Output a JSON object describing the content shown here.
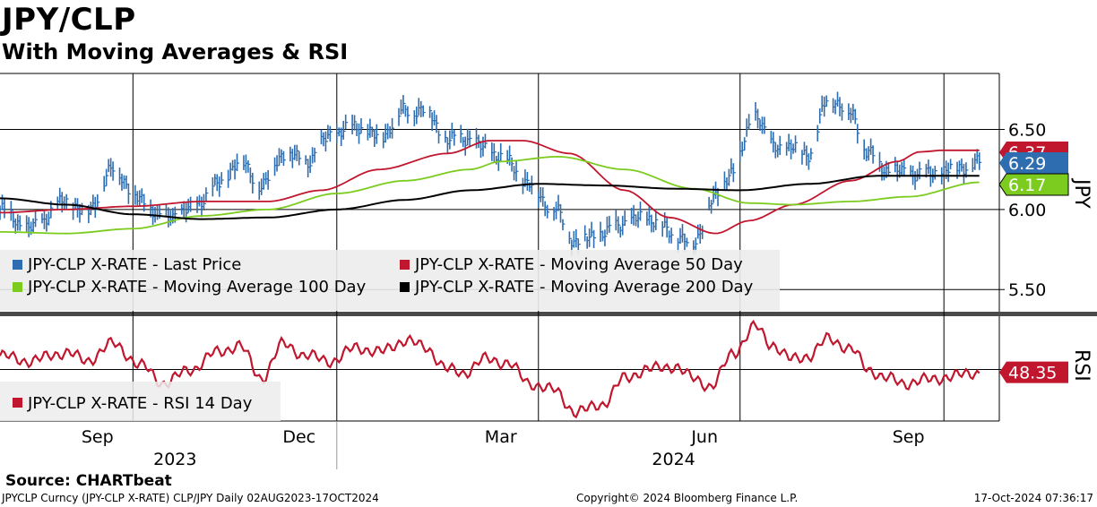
{
  "header": {
    "title": "JPY/CLP",
    "subtitle": "With Moving Averages & RSI"
  },
  "footer": {
    "source": "Source: CHARTbeat",
    "security": "JPYCLP Curncy (JPY-CLP X-RATE) CLP/JPY  Daily 02AUG2023-17OCT2024",
    "copyright": "Copyright© 2024 Bloomberg Finance L.P.",
    "timestamp": "17-Oct-2024 07:36:17"
  },
  "chart_data": [
    {
      "type": "line",
      "panel": "price",
      "yaxis_label": "JPY",
      "ylim": [
        5.35,
        6.85
      ],
      "yticks": [
        5.5,
        6.0,
        6.5
      ],
      "ytick_labels": [
        "5.50",
        "6.00",
        "6.50"
      ],
      "grid": true,
      "legend_position": "bottom-left",
      "colors": {
        "last_price": "#2e6db0",
        "ma50": "#c0172f",
        "ma100": "#7ccc1f",
        "ma200": "#000000"
      },
      "series": [
        {
          "name": "JPY-CLP X-RATE - Last Price",
          "key": "last_price",
          "style": "ohlc-bars",
          "x": [
            "2023-08-02",
            "2023-08-15",
            "2023-09-01",
            "2023-09-10",
            "2023-09-22",
            "2023-10-05",
            "2023-10-15",
            "2023-10-27",
            "2023-11-08",
            "2023-11-18",
            "2023-11-28",
            "2023-12-08",
            "2023-12-18",
            "2023-12-30",
            "2024-01-10",
            "2024-01-20",
            "2024-02-01",
            "2024-02-10",
            "2024-02-20",
            "2024-02-27",
            "2024-03-08",
            "2024-03-18",
            "2024-03-28",
            "2024-04-08",
            "2024-04-18",
            "2024-04-30",
            "2024-05-10",
            "2024-05-20",
            "2024-06-01",
            "2024-06-10",
            "2024-06-18",
            "2024-06-28",
            "2024-07-08",
            "2024-07-15",
            "2024-07-24",
            "2024-08-01",
            "2024-08-10",
            "2024-08-20",
            "2024-08-28",
            "2024-09-05",
            "2024-09-13",
            "2024-09-24",
            "2024-10-04",
            "2024-10-17"
          ],
          "values": [
            6.0,
            5.88,
            6.05,
            5.98,
            6.25,
            6.05,
            5.95,
            6.0,
            6.15,
            6.3,
            6.15,
            6.35,
            6.3,
            6.47,
            6.52,
            6.45,
            6.62,
            6.62,
            6.43,
            6.45,
            6.38,
            6.3,
            6.15,
            6.0,
            5.8,
            5.85,
            5.92,
            5.95,
            5.85,
            5.78,
            6.05,
            6.25,
            6.6,
            6.4,
            6.38,
            6.35,
            6.7,
            6.6,
            6.35,
            6.25,
            6.23,
            6.22,
            6.25,
            6.29
          ]
        },
        {
          "name": "JPY-CLP X-RATE - Moving Average 50 Day",
          "key": "ma50",
          "style": "line",
          "x": [
            "2023-08-02",
            "2023-09-01",
            "2023-10-01",
            "2023-11-01",
            "2023-12-01",
            "2023-12-25",
            "2024-01-20",
            "2024-02-20",
            "2024-03-10",
            "2024-03-25",
            "2024-04-15",
            "2024-05-10",
            "2024-05-30",
            "2024-06-20",
            "2024-07-05",
            "2024-07-25",
            "2024-08-20",
            "2024-09-10",
            "2024-09-20",
            "2024-10-01",
            "2024-10-17"
          ],
          "values": [
            5.98,
            6.0,
            6.02,
            6.05,
            6.05,
            6.12,
            6.25,
            6.35,
            6.43,
            6.43,
            6.35,
            6.12,
            5.95,
            5.85,
            5.93,
            6.03,
            6.18,
            6.3,
            6.36,
            6.37,
            6.37
          ]
        },
        {
          "name": "JPY-CLP X-RATE - Moving Average 100 Day",
          "key": "ma100",
          "style": "line",
          "x": [
            "2023-08-02",
            "2023-09-01",
            "2023-10-01",
            "2023-11-01",
            "2023-12-01",
            "2024-01-01",
            "2024-02-01",
            "2024-03-01",
            "2024-03-15",
            "2024-04-10",
            "2024-05-10",
            "2024-06-10",
            "2024-07-05",
            "2024-07-25",
            "2024-08-20",
            "2024-09-15",
            "2024-10-17"
          ],
          "values": [
            5.86,
            5.85,
            5.88,
            5.96,
            6.0,
            6.1,
            6.18,
            6.25,
            6.3,
            6.33,
            6.25,
            6.13,
            6.04,
            6.03,
            6.05,
            6.08,
            6.17
          ]
        },
        {
          "name": "JPY-CLP X-RATE - Moving Average 200 Day",
          "key": "ma200",
          "style": "line",
          "x": [
            "2023-08-02",
            "2023-09-01",
            "2023-10-01",
            "2023-11-01",
            "2023-12-01",
            "2024-01-01",
            "2024-02-01",
            "2024-03-01",
            "2024-04-01",
            "2024-05-01",
            "2024-06-01",
            "2024-07-01",
            "2024-08-01",
            "2024-09-01",
            "2024-10-17"
          ],
          "values": [
            6.07,
            6.03,
            5.97,
            5.94,
            5.95,
            6.0,
            6.06,
            6.12,
            6.16,
            6.15,
            6.13,
            6.12,
            6.16,
            6.21,
            6.21
          ]
        }
      ],
      "badges": [
        {
          "series": "ma50",
          "label": "6.37",
          "color": "#c0172f"
        },
        {
          "series": "last_price",
          "label": "6.29",
          "color": "#2e6db0"
        },
        {
          "series": "ma100",
          "label": "6.17",
          "color": "#7ccc1f"
        }
      ]
    },
    {
      "type": "line",
      "panel": "rsi",
      "yaxis_label": "RSI",
      "ylim": [
        20,
        80
      ],
      "reference_line": 50,
      "legend_position": "bottom-left",
      "color": "#c0172f",
      "series": [
        {
          "name": "JPY-CLP X-RATE - RSI 14 Day",
          "x": [
            "2023-08-02",
            "2023-08-15",
            "2023-09-01",
            "2023-09-10",
            "2023-09-22",
            "2023-10-05",
            "2023-10-15",
            "2023-10-27",
            "2023-11-08",
            "2023-11-18",
            "2023-11-28",
            "2023-12-08",
            "2023-12-18",
            "2023-12-30",
            "2024-01-10",
            "2024-01-20",
            "2024-02-01",
            "2024-02-10",
            "2024-02-20",
            "2024-02-27",
            "2024-03-08",
            "2024-03-18",
            "2024-03-28",
            "2024-04-08",
            "2024-04-18",
            "2024-04-30",
            "2024-05-10",
            "2024-05-20",
            "2024-06-01",
            "2024-06-10",
            "2024-06-18",
            "2024-06-28",
            "2024-07-08",
            "2024-07-15",
            "2024-07-24",
            "2024-08-01",
            "2024-08-10",
            "2024-08-20",
            "2024-08-28",
            "2024-09-05",
            "2024-09-13",
            "2024-09-24",
            "2024-10-04",
            "2024-10-17"
          ],
          "values": [
            58,
            55,
            60,
            55,
            65,
            52,
            42,
            50,
            60,
            64,
            45,
            65,
            58,
            55,
            63,
            60,
            67,
            63,
            50,
            48,
            56,
            54,
            42,
            38,
            25,
            30,
            45,
            50,
            52,
            45,
            40,
            60,
            75,
            65,
            56,
            58,
            68,
            62,
            50,
            45,
            42,
            44,
            46,
            48.35
          ]
        }
      ],
      "badges": [
        {
          "label": "48.35",
          "color": "#c0172f"
        }
      ]
    }
  ],
  "xaxis": {
    "range": [
      "2023-08-02",
      "2024-10-26"
    ],
    "month_ticks": [
      {
        "label": "Sep",
        "date": "2023-09-15"
      },
      {
        "label": "Dec",
        "date": "2023-12-15"
      },
      {
        "label": "Mar",
        "date": "2024-03-15"
      },
      {
        "label": "Jun",
        "date": "2024-06-15"
      },
      {
        "label": "Sep",
        "date": "2024-09-15"
      }
    ],
    "year_labels": [
      {
        "label": "2023",
        "date": "2023-10-20"
      },
      {
        "label": "2024",
        "date": "2024-06-01"
      }
    ],
    "year_divider": "2024-01-01",
    "gridlines": [
      "2023-10-01",
      "2024-01-01",
      "2024-04-01",
      "2024-07-01",
      "2024-10-01"
    ]
  }
}
